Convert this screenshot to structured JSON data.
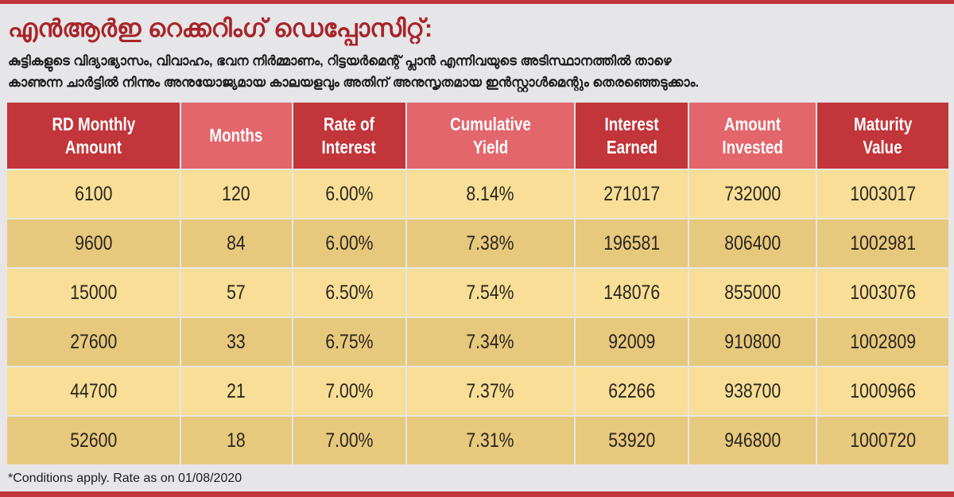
{
  "title": "എൻആർഇ റെക്കറിംഗ് ഡെപ്പോസിറ്റ്:",
  "subtitle_lines": [
    "കുട്ടികളുടെ വിദ്യാഭ്യാസം, വിവാഹം, ഭവന നിർമ്മാണം, റിട്ടയർമെന്റ് പ്ലാൻ എന്നിവയുടെ അടിസ്ഥാനത്തിൽ താഴെ",
    "കാണുന്ന ചാർട്ടിൽ നിന്നും അനുയോജ്യമായ കാലയളവും അതിന് അനുസൃതമായ ഇൻസ്റ്റാൾമെന്റും തെരഞ്ഞെടുക്കാം."
  ],
  "colors": {
    "accent": "#c0363a",
    "header_dark": "#c2353a",
    "header_light": "#e2666c",
    "row_light": "#f8de96",
    "row_dark": "#e7c97d"
  },
  "table": {
    "headers": [
      [
        "RD Monthly",
        "Amount"
      ],
      [
        "Months",
        ""
      ],
      [
        "Rate of",
        "Interest"
      ],
      [
        "Cumulative",
        "Yield"
      ],
      [
        "Interest",
        "Earned"
      ],
      [
        "Amount",
        "Invested"
      ],
      [
        "Maturity",
        "Value"
      ]
    ],
    "rows": [
      [
        "6100",
        "120",
        "6.00%",
        "8.14%",
        "271017",
        "732000",
        "1003017"
      ],
      [
        "9600",
        "84",
        "6.00%",
        "7.38%",
        "196581",
        "806400",
        "1002981"
      ],
      [
        "15000",
        "57",
        "6.50%",
        "7.54%",
        "148076",
        "855000",
        "1003076"
      ],
      [
        "27600",
        "33",
        "6.75%",
        "7.34%",
        "92009",
        "910800",
        "1002809"
      ],
      [
        "44700",
        "21",
        "7.00%",
        "7.37%",
        "62266",
        "938700",
        "1000966"
      ],
      [
        "52600",
        "18",
        "7.00%",
        "7.31%",
        "53920",
        "946800",
        "1000720"
      ]
    ]
  },
  "footnote": "*Conditions apply. Rate as on 01/08/2020"
}
